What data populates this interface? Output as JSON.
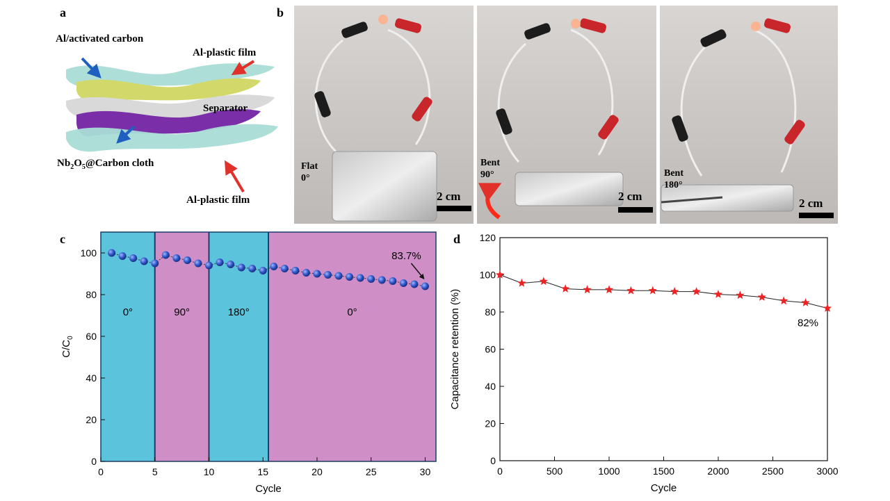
{
  "panels": {
    "a": {
      "letter": "a",
      "labels": {
        "al_carbon": "Al/activated carbon",
        "al_film_top": "Al-plastic film",
        "separator": "Separator",
        "nb_prefix": "Nb",
        "nb_sub1": "2",
        "nb_mid": "O",
        "nb_sub2": "5",
        "nb_suffix": "@Carbon cloth",
        "al_film_bottom": "Al-plastic film"
      },
      "colors": {
        "film": "#a9ddd6",
        "carbon": "#d2d86a",
        "separator": "#d9d9d9",
        "nb_cloth": "#7a2fa8",
        "arrow_blue": "#1f5fbf",
        "arrow_red": "#e0322a"
      }
    },
    "b": {
      "letter": "b",
      "photos": [
        {
          "state": "Flat",
          "angle": "0°",
          "scale": "2 cm"
        },
        {
          "state": "Bent",
          "angle": "90°",
          "scale": "2 cm"
        },
        {
          "state": "Bent",
          "angle": "180°",
          "scale": "2 cm"
        }
      ]
    },
    "c": {
      "letter": "c",
      "region_colors": {
        "cyan": "#5bc4dc",
        "magenta": "#cf8fc6"
      },
      "marker_color": "#2f55c8"
    },
    "d": {
      "letter": "d",
      "marker_color": "#ee2222"
    }
  },
  "chart_data": [
    {
      "type": "scatter",
      "panel": "c",
      "xlabel": "Cycle",
      "ylabel_main": "C/C",
      "ylabel_sub": "0",
      "xlim": [
        0,
        31
      ],
      "ylim": [
        0,
        110
      ],
      "xticks": [
        0,
        5,
        10,
        15,
        20,
        25,
        30
      ],
      "yticks": [
        0,
        20,
        40,
        60,
        80,
        100
      ],
      "regions": [
        {
          "label": "0°",
          "x0": 0,
          "x1": 5,
          "color": "cyan"
        },
        {
          "label": "90°",
          "x0": 5,
          "x1": 10,
          "color": "magenta"
        },
        {
          "label": "180°",
          "x0": 10,
          "x1": 15.5,
          "color": "cyan"
        },
        {
          "label": "0°",
          "x0": 15.5,
          "x1": 31,
          "color": "magenta"
        }
      ],
      "series": [
        {
          "x": [
            1,
            2,
            3,
            4,
            5,
            6,
            7,
            8,
            9,
            10,
            11,
            12,
            13,
            14,
            15,
            16,
            17,
            18,
            19,
            20,
            21,
            22,
            23,
            24,
            25,
            26,
            27,
            28,
            29,
            30
          ],
          "values": [
            100,
            98.5,
            97.5,
            96,
            95,
            99,
            97.5,
            96.5,
            95,
            94,
            95.5,
            94.5,
            93,
            92.5,
            91.5,
            93.5,
            92.5,
            91.5,
            90.5,
            90,
            89.5,
            89,
            88.5,
            88,
            87.5,
            87,
            86.5,
            85.5,
            85,
            84
          ]
        }
      ],
      "annotation": {
        "text": "83.7%",
        "x": 30,
        "y": 83.7
      }
    },
    {
      "type": "line",
      "panel": "d",
      "xlabel": "Cycle",
      "ylabel": "Capacitance retention (%)",
      "xlim": [
        0,
        3000
      ],
      "ylim": [
        0,
        120
      ],
      "xticks": [
        0,
        500,
        1000,
        1500,
        2000,
        2500,
        3000
      ],
      "yticks": [
        0,
        20,
        40,
        60,
        80,
        100,
        120
      ],
      "series": [
        {
          "x": [
            0,
            200,
            400,
            600,
            800,
            1000,
            1200,
            1400,
            1600,
            1800,
            2000,
            2200,
            2400,
            2600,
            2800,
            3000
          ],
          "values": [
            100,
            95.5,
            96.5,
            92.5,
            92,
            92,
            91.5,
            91.5,
            91,
            91,
            89.5,
            89,
            88,
            86,
            85,
            82
          ]
        }
      ],
      "annotation": {
        "text": "82%",
        "x": 3000,
        "y": 82
      }
    }
  ]
}
